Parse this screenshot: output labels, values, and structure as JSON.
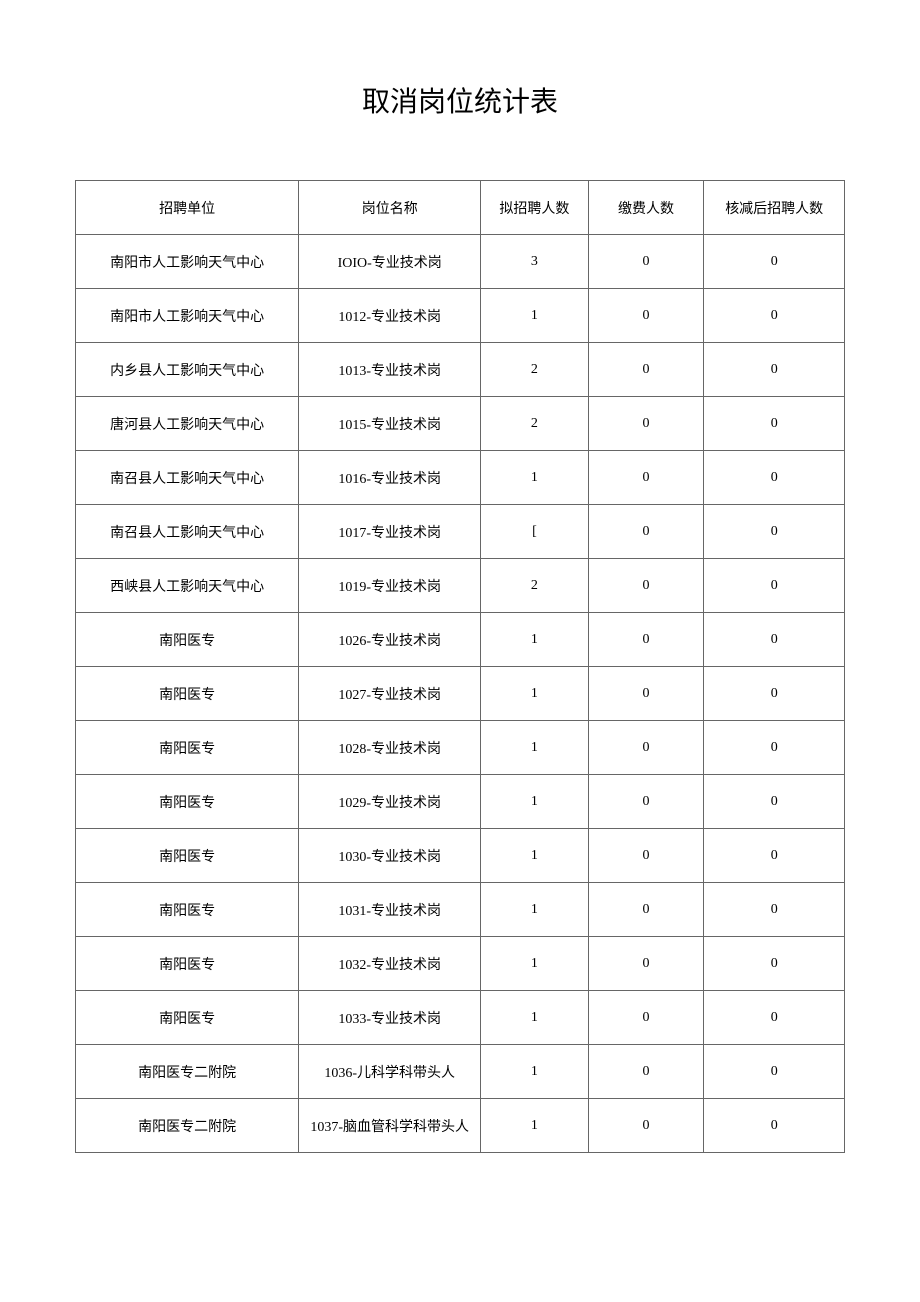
{
  "title": "取消岗位统计表",
  "columns": [
    "招聘单位",
    "岗位名称",
    "拟招聘人数",
    "缴费人数",
    "核减后招聘人数"
  ],
  "rows": [
    [
      "南阳市人工影响天气中心",
      "IOIO-专业技术岗",
      "3",
      "0",
      "0"
    ],
    [
      "南阳市人工影响天气中心",
      "1012-专业技术岗",
      "1",
      "0",
      "0"
    ],
    [
      "内乡县人工影响天气中心",
      "1013-专业技术岗",
      "2",
      "0",
      "0"
    ],
    [
      "唐河县人工影响天气中心",
      "1015-专业技术岗",
      "2",
      "0",
      "0"
    ],
    [
      "南召县人工影响天气中心",
      "1016-专业技术岗",
      "1",
      "0",
      "0"
    ],
    [
      "南召县人工影响天气中心",
      "1017-专业技术岗",
      "[",
      "0",
      "0"
    ],
    [
      "西峡县人工影响天气中心",
      "1019-专业技术岗",
      "2",
      "0",
      "0"
    ],
    [
      "南阳医专",
      "1026-专业技术岗",
      "1",
      "0",
      "0"
    ],
    [
      "南阳医专",
      "1027-专业技术岗",
      "1",
      "0",
      "0"
    ],
    [
      "南阳医专",
      "1028-专业技术岗",
      "1",
      "0",
      "0"
    ],
    [
      "南阳医专",
      "1029-专业技术岗",
      "1",
      "0",
      "0"
    ],
    [
      "南阳医专",
      "1030-专业技术岗",
      "1",
      "0",
      "0"
    ],
    [
      "南阳医专",
      "1031-专业技术岗",
      "1",
      "0",
      "0"
    ],
    [
      "南阳医专",
      "1032-专业技术岗",
      "1",
      "0",
      "0"
    ],
    [
      "南阳医专",
      "1033-专业技术岗",
      "1",
      "0",
      "0"
    ],
    [
      "南阳医专二附院",
      "1036-儿科学科带头人",
      "1",
      "0",
      "0"
    ],
    [
      "南阳医专二附院",
      "1037-脑血管科学科带头人",
      "1",
      "0",
      "0"
    ]
  ]
}
